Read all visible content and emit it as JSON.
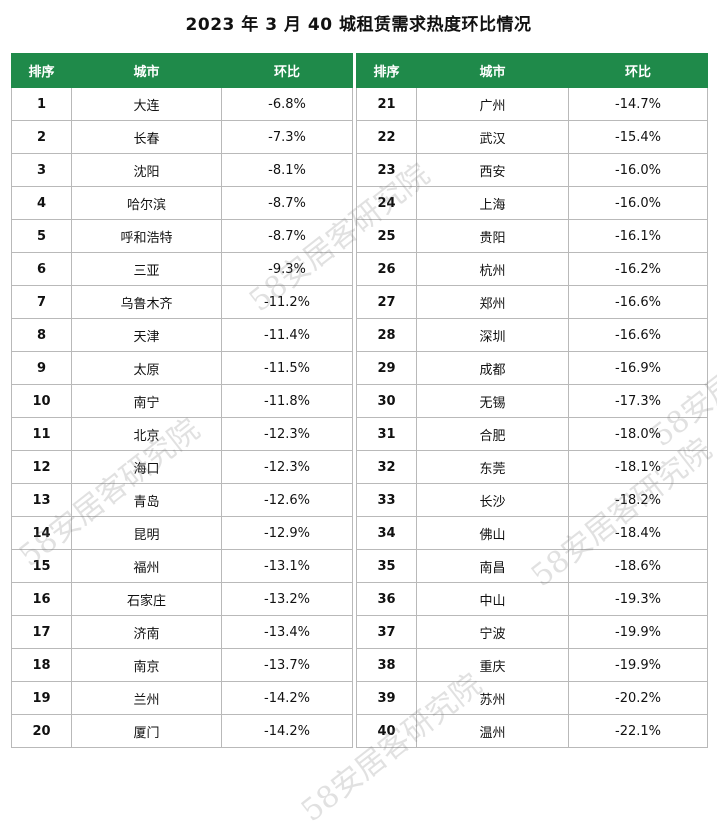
{
  "title": "2023 年 3 月 40 城租赁需求热度环比情况",
  "headers": {
    "rank": "排序",
    "city": "城市",
    "change": "环比"
  },
  "left_rows": [
    {
      "rank": "1",
      "city": "大连",
      "change": "-6.8%"
    },
    {
      "rank": "2",
      "city": "长春",
      "change": "-7.3%"
    },
    {
      "rank": "3",
      "city": "沈阳",
      "change": "-8.1%"
    },
    {
      "rank": "4",
      "city": "哈尔滨",
      "change": "-8.7%"
    },
    {
      "rank": "5",
      "city": "呼和浩特",
      "change": "-8.7%"
    },
    {
      "rank": "6",
      "city": "三亚",
      "change": "-9.3%"
    },
    {
      "rank": "7",
      "city": "乌鲁木齐",
      "change": "-11.2%"
    },
    {
      "rank": "8",
      "city": "天津",
      "change": "-11.4%"
    },
    {
      "rank": "9",
      "city": "太原",
      "change": "-11.5%"
    },
    {
      "rank": "10",
      "city": "南宁",
      "change": "-11.8%"
    },
    {
      "rank": "11",
      "city": "北京",
      "change": "-12.3%"
    },
    {
      "rank": "12",
      "city": "海口",
      "change": "-12.3%"
    },
    {
      "rank": "13",
      "city": "青岛",
      "change": "-12.6%"
    },
    {
      "rank": "14",
      "city": "昆明",
      "change": "-12.9%"
    },
    {
      "rank": "15",
      "city": "福州",
      "change": "-13.1%"
    },
    {
      "rank": "16",
      "city": "石家庄",
      "change": "-13.2%"
    },
    {
      "rank": "17",
      "city": "济南",
      "change": "-13.4%"
    },
    {
      "rank": "18",
      "city": "南京",
      "change": "-13.7%"
    },
    {
      "rank": "19",
      "city": "兰州",
      "change": "-14.2%"
    },
    {
      "rank": "20",
      "city": "厦门",
      "change": "-14.2%"
    }
  ],
  "right_rows": [
    {
      "rank": "21",
      "city": "广州",
      "change": "-14.7%"
    },
    {
      "rank": "22",
      "city": "武汉",
      "change": "-15.4%"
    },
    {
      "rank": "23",
      "city": "西安",
      "change": "-16.0%"
    },
    {
      "rank": "24",
      "city": "上海",
      "change": "-16.0%"
    },
    {
      "rank": "25",
      "city": "贵阳",
      "change": "-16.1%"
    },
    {
      "rank": "26",
      "city": "杭州",
      "change": "-16.2%"
    },
    {
      "rank": "27",
      "city": "郑州",
      "change": "-16.6%"
    },
    {
      "rank": "28",
      "city": "深圳",
      "change": "-16.6%"
    },
    {
      "rank": "29",
      "city": "成都",
      "change": "-16.9%"
    },
    {
      "rank": "30",
      "city": "无锡",
      "change": "-17.3%"
    },
    {
      "rank": "31",
      "city": "合肥",
      "change": "-18.0%"
    },
    {
      "rank": "32",
      "city": "东莞",
      "change": "-18.1%"
    },
    {
      "rank": "33",
      "city": "长沙",
      "change": "-18.2%"
    },
    {
      "rank": "34",
      "city": "佛山",
      "change": "-18.4%"
    },
    {
      "rank": "35",
      "city": "南昌",
      "change": "-18.6%"
    },
    {
      "rank": "36",
      "city": "中山",
      "change": "-19.3%"
    },
    {
      "rank": "37",
      "city": "宁波",
      "change": "-19.9%"
    },
    {
      "rank": "38",
      "city": "重庆",
      "change": "-19.9%"
    },
    {
      "rank": "39",
      "city": "苏州",
      "change": "-20.2%"
    },
    {
      "rank": "40",
      "city": "温州",
      "change": "-22.1%"
    }
  ],
  "watermark": "58安居客研究院",
  "colors": {
    "header_bg": "#1f8a4a",
    "header_text": "#ffffff",
    "grid": "#b9b9b9"
  }
}
